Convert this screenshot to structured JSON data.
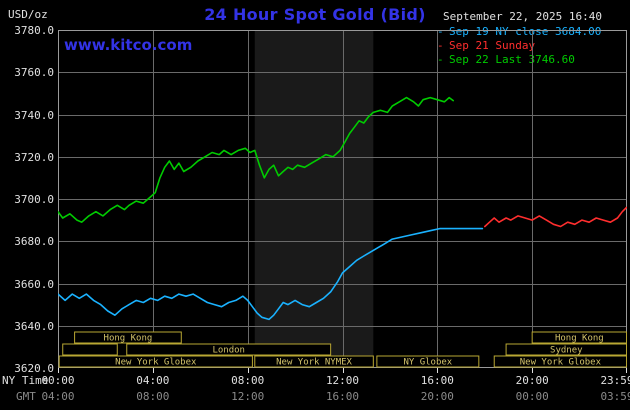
{
  "header": {
    "title": "24 Hour Spot Gold (Bid)",
    "units_label": "USD/oz",
    "datetime": "September 22, 2025 16:40",
    "watermark": "www.kitco.com",
    "legend": [
      {
        "marker": "-",
        "label": "Sep 19 NY close 3684.00",
        "color": "#1ab2ff"
      },
      {
        "marker": "-",
        "label": "Sep 21 Sunday",
        "color": "#ff2e2e"
      },
      {
        "marker": "-",
        "label": "Sep 22 Last 3746.60",
        "color": "#00cc00"
      }
    ]
  },
  "axes": {
    "ny_time_label": "NY Time",
    "gmt_label": "GMT",
    "y_tick_labels": [
      "3780.0",
      "3760.0",
      "3740.0",
      "3720.0",
      "3700.0",
      "3680.0",
      "3660.0",
      "3640.0",
      "3620.0"
    ],
    "x_ticks": [
      {
        "hour": 0,
        "ny": "00:00",
        "gmt": "04:00"
      },
      {
        "hour": 4,
        "ny": "04:00",
        "gmt": "08:00"
      },
      {
        "hour": 8,
        "ny": "08:00",
        "gmt": "12:00"
      },
      {
        "hour": 12,
        "ny": "12:00",
        "gmt": "16:00"
      },
      {
        "hour": 16,
        "ny": "16:00",
        "gmt": "20:00"
      },
      {
        "hour": 20,
        "ny": "20:00",
        "gmt": "00:00"
      },
      {
        "hour": 23.983,
        "ny": "23:59",
        "gmt": "03:59"
      }
    ]
  },
  "chart_data": {
    "type": "line",
    "title": "24 Hour Spot Gold (Bid)",
    "xlabel": "NY Time (hours)",
    "ylabel": "USD/oz",
    "x_range": [
      0,
      24
    ],
    "y_range": [
      3620,
      3780
    ],
    "grid": {
      "v_hours": [
        4,
        8,
        12,
        16,
        20
      ],
      "h_values": [
        3640,
        3660,
        3680,
        3700,
        3720,
        3740,
        3760
      ]
    },
    "nymex_band": {
      "start": 8.3,
      "end": 13.3
    },
    "series": [
      {
        "id": "sep19",
        "name": "Sep 19 NY close 3684.00",
        "color": "#1ab2ff",
        "points": [
          [
            0,
            3655
          ],
          [
            0.3,
            3652
          ],
          [
            0.6,
            3655
          ],
          [
            0.9,
            3653
          ],
          [
            1.2,
            3655
          ],
          [
            1.5,
            3652
          ],
          [
            1.8,
            3650
          ],
          [
            2.1,
            3647
          ],
          [
            2.4,
            3645
          ],
          [
            2.7,
            3648
          ],
          [
            3.0,
            3650
          ],
          [
            3.3,
            3652
          ],
          [
            3.6,
            3651
          ],
          [
            3.9,
            3653
          ],
          [
            4.2,
            3652
          ],
          [
            4.5,
            3654
          ],
          [
            4.8,
            3653
          ],
          [
            5.1,
            3655
          ],
          [
            5.4,
            3654
          ],
          [
            5.7,
            3655
          ],
          [
            6.0,
            3653
          ],
          [
            6.3,
            3651
          ],
          [
            6.6,
            3650
          ],
          [
            6.9,
            3649
          ],
          [
            7.2,
            3651
          ],
          [
            7.5,
            3652
          ],
          [
            7.8,
            3654
          ],
          [
            8.0,
            3652
          ],
          [
            8.2,
            3649
          ],
          [
            8.4,
            3646
          ],
          [
            8.6,
            3644
          ],
          [
            8.9,
            3643
          ],
          [
            9.1,
            3645
          ],
          [
            9.3,
            3648
          ],
          [
            9.5,
            3651
          ],
          [
            9.7,
            3650
          ],
          [
            10.0,
            3652
          ],
          [
            10.3,
            3650
          ],
          [
            10.6,
            3649
          ],
          [
            10.9,
            3651
          ],
          [
            11.2,
            3653
          ],
          [
            11.5,
            3656
          ],
          [
            11.8,
            3661
          ],
          [
            12.0,
            3665
          ],
          [
            12.3,
            3668
          ],
          [
            12.6,
            3671
          ],
          [
            12.9,
            3673
          ],
          [
            13.2,
            3675
          ],
          [
            13.5,
            3677
          ],
          [
            13.8,
            3679
          ],
          [
            14.1,
            3681
          ],
          [
            14.5,
            3682
          ],
          [
            14.9,
            3683
          ],
          [
            15.3,
            3684
          ],
          [
            15.7,
            3685
          ],
          [
            16.1,
            3686
          ],
          [
            16.6,
            3686
          ],
          [
            17.1,
            3686
          ],
          [
            17.6,
            3686
          ],
          [
            17.9,
            3686
          ]
        ]
      },
      {
        "id": "sep21",
        "name": "Sep 21 Sunday",
        "color": "#ff2e2e",
        "points": [
          [
            18.0,
            3687
          ],
          [
            18.2,
            3689
          ],
          [
            18.4,
            3691
          ],
          [
            18.6,
            3689
          ],
          [
            18.9,
            3691
          ],
          [
            19.1,
            3690
          ],
          [
            19.4,
            3692
          ],
          [
            19.7,
            3691
          ],
          [
            20.0,
            3690
          ],
          [
            20.3,
            3692
          ],
          [
            20.6,
            3690
          ],
          [
            20.9,
            3688
          ],
          [
            21.2,
            3687
          ],
          [
            21.5,
            3689
          ],
          [
            21.8,
            3688
          ],
          [
            22.1,
            3690
          ],
          [
            22.4,
            3689
          ],
          [
            22.7,
            3691
          ],
          [
            23.0,
            3690
          ],
          [
            23.3,
            3689
          ],
          [
            23.6,
            3691
          ],
          [
            23.8,
            3694
          ],
          [
            23.98,
            3696
          ]
        ]
      },
      {
        "id": "sep22",
        "name": "Sep 22 Last 3746.60",
        "color": "#00cc00",
        "points": [
          [
            0,
            3694
          ],
          [
            0.2,
            3691
          ],
          [
            0.5,
            3693
          ],
          [
            0.8,
            3690
          ],
          [
            1.0,
            3689
          ],
          [
            1.3,
            3692
          ],
          [
            1.6,
            3694
          ],
          [
            1.9,
            3692
          ],
          [
            2.2,
            3695
          ],
          [
            2.5,
            3697
          ],
          [
            2.8,
            3695
          ],
          [
            3.0,
            3697
          ],
          [
            3.3,
            3699
          ],
          [
            3.6,
            3698
          ],
          [
            3.9,
            3701
          ],
          [
            4.1,
            3703
          ],
          [
            4.3,
            3710
          ],
          [
            4.5,
            3715
          ],
          [
            4.7,
            3718
          ],
          [
            4.9,
            3714
          ],
          [
            5.1,
            3717
          ],
          [
            5.3,
            3713
          ],
          [
            5.6,
            3715
          ],
          [
            5.9,
            3718
          ],
          [
            6.2,
            3720
          ],
          [
            6.5,
            3722
          ],
          [
            6.8,
            3721
          ],
          [
            7.0,
            3723
          ],
          [
            7.3,
            3721
          ],
          [
            7.6,
            3723
          ],
          [
            7.9,
            3724
          ],
          [
            8.1,
            3722
          ],
          [
            8.3,
            3723
          ],
          [
            8.5,
            3716
          ],
          [
            8.7,
            3710
          ],
          [
            8.9,
            3714
          ],
          [
            9.1,
            3716
          ],
          [
            9.3,
            3711
          ],
          [
            9.5,
            3713
          ],
          [
            9.7,
            3715
          ],
          [
            9.9,
            3714
          ],
          [
            10.1,
            3716
          ],
          [
            10.4,
            3715
          ],
          [
            10.7,
            3717
          ],
          [
            11.0,
            3719
          ],
          [
            11.3,
            3721
          ],
          [
            11.6,
            3720
          ],
          [
            11.9,
            3723
          ],
          [
            12.1,
            3727
          ],
          [
            12.3,
            3731
          ],
          [
            12.5,
            3734
          ],
          [
            12.7,
            3737
          ],
          [
            12.9,
            3736
          ],
          [
            13.1,
            3739
          ],
          [
            13.3,
            3741
          ],
          [
            13.6,
            3742
          ],
          [
            13.9,
            3741
          ],
          [
            14.1,
            3744
          ],
          [
            14.4,
            3746
          ],
          [
            14.7,
            3748
          ],
          [
            15.0,
            3746
          ],
          [
            15.2,
            3744
          ],
          [
            15.4,
            3747
          ],
          [
            15.7,
            3748
          ],
          [
            16.0,
            3747
          ],
          [
            16.3,
            3746
          ],
          [
            16.5,
            3748
          ],
          [
            16.67,
            3746.6
          ]
        ]
      }
    ],
    "sessions": [
      {
        "row": 0,
        "boxes": [
          {
            "label": "Hong Kong",
            "start": 0.7,
            "end": 5.2
          },
          {
            "label": "Hong Kong",
            "start": 20.0,
            "end": 23.98
          }
        ]
      },
      {
        "row": 1,
        "boxes": [
          {
            "label": "",
            "start": 0.2,
            "end": 2.5
          },
          {
            "label": "London",
            "start": 2.9,
            "end": 11.5
          },
          {
            "label": "Sydney",
            "start": 18.9,
            "end": 23.98
          }
        ]
      },
      {
        "row": 2,
        "boxes": [
          {
            "label": "New York Globex",
            "start": 0.05,
            "end": 8.2
          },
          {
            "label": "New York NYMEX",
            "start": 8.3,
            "end": 13.3
          },
          {
            "label": "NY Globex",
            "start": 13.45,
            "end": 17.75
          },
          {
            "label": "New York Globex",
            "start": 18.4,
            "end": 23.98
          }
        ]
      }
    ]
  },
  "colors": {
    "background": "#000000",
    "nymex_band": "#1a1a1a",
    "grid": "#6a6a6a",
    "border": "#9a9a9a",
    "title_blue": "#3333e6",
    "axis_text": "#e0e0e0",
    "gmt_text": "#8a8a8a",
    "tick_mark": "#dddddd",
    "session_outline": "#b9a733",
    "session_text": "#d2c26a"
  }
}
